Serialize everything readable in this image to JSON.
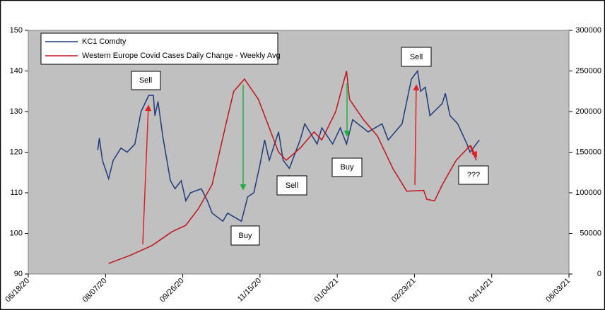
{
  "chart_data": {
    "type": "line",
    "xlim": [
      "2020-06-18",
      "2021-06-03"
    ],
    "xticks": [
      {
        "value": "2020-06-18",
        "label": "06/18/20"
      },
      {
        "value": "2020-08-07",
        "label": "08/07/20"
      },
      {
        "value": "2020-09-26",
        "label": "09/26/20"
      },
      {
        "value": "2020-11-15",
        "label": "11/15/20"
      },
      {
        "value": "2021-01-04",
        "label": "01/04/21"
      },
      {
        "value": "2021-02-23",
        "label": "02/23/21"
      },
      {
        "value": "2021-04-14",
        "label": "04/14/21"
      },
      {
        "value": "2021-06-03",
        "label": "06/03/21"
      }
    ],
    "ylim": [
      90,
      150
    ],
    "yticks": [
      90,
      100,
      110,
      120,
      130,
      140,
      150
    ],
    "y2lim": [
      0,
      300000
    ],
    "y2ticks": [
      0,
      50000,
      100000,
      150000,
      200000,
      250000,
      300000
    ],
    "legend": "upper left",
    "series": [
      {
        "name": "KC1 Comdty",
        "color": "#1f3a7a",
        "x": [
          "2020-08-02",
          "2020-08-03",
          "2020-08-05",
          "2020-08-09",
          "2020-08-12",
          "2020-08-17",
          "2020-08-21",
          "2020-08-26",
          "2020-08-30",
          "2020-09-04",
          "2020-09-07",
          "2020-09-08",
          "2020-09-10",
          "2020-09-13",
          "2020-09-18",
          "2020-09-21",
          "2020-09-25",
          "2020-09-28",
          "2020-10-01",
          "2020-10-08",
          "2020-10-12",
          "2020-10-15",
          "2020-10-22",
          "2020-10-25",
          "2020-11-03",
          "2020-11-07",
          "2020-11-11",
          "2020-11-15",
          "2020-11-18",
          "2020-11-21",
          "2020-11-27",
          "2020-11-30",
          "2020-12-04",
          "2020-12-11",
          "2020-12-14",
          "2020-12-22",
          "2020-12-25",
          "2021-01-01",
          "2021-01-06",
          "2021-01-10",
          "2021-01-14",
          "2021-01-24",
          "2021-02-02",
          "2021-02-06",
          "2021-02-15",
          "2021-02-21",
          "2021-02-25",
          "2021-02-27",
          "2021-03-02",
          "2021-03-05",
          "2021-03-13",
          "2021-03-15",
          "2021-03-18",
          "2021-03-23",
          "2021-03-29",
          "2021-03-31",
          "2021-04-06"
        ],
        "values": [
          120.5,
          123.5,
          118,
          113.5,
          118,
          121,
          120,
          122,
          130,
          134,
          134,
          129,
          132.5,
          124,
          113,
          111,
          113,
          108,
          110,
          111,
          108,
          105,
          103,
          105,
          103,
          109,
          110,
          117,
          123,
          118,
          125,
          118,
          116,
          123,
          127,
          122,
          126,
          122,
          126,
          122,
          128,
          125,
          127,
          123,
          127,
          138,
          140,
          135,
          136,
          129,
          132,
          134.5,
          129,
          127,
          122,
          120,
          123
        ]
      },
      {
        "name": "Western Europe Covid Cases Daily Change - Weekly Avg",
        "color": "#c0141c",
        "axis": "y2",
        "x": [
          "2020-08-09",
          "2020-08-23",
          "2020-09-06",
          "2020-09-19",
          "2020-09-28",
          "2020-10-06",
          "2020-10-15",
          "2020-10-24",
          "2020-10-29",
          "2020-11-05",
          "2020-11-14",
          "2020-11-19",
          "2020-11-27",
          "2020-12-02",
          "2020-12-11",
          "2020-12-20",
          "2020-12-25",
          "2021-01-03",
          "2021-01-10",
          "2021-01-12",
          "2021-01-21",
          "2021-01-30",
          "2021-02-09",
          "2021-02-18",
          "2021-03-01",
          "2021-03-03",
          "2021-03-08",
          "2021-03-13",
          "2021-03-22",
          "2021-03-31",
          "2021-04-04"
        ],
        "values": [
          13000,
          23000,
          35000,
          52000,
          60000,
          80000,
          110000,
          185000,
          225000,
          240000,
          215000,
          190000,
          150000,
          140000,
          155000,
          175000,
          165000,
          200000,
          250000,
          215000,
          190000,
          170000,
          130000,
          102000,
          103000,
          92000,
          90000,
          110000,
          140000,
          158000,
          140000
        ]
      }
    ],
    "annotations": [
      "Sell",
      "Buy",
      "Sell",
      "Buy",
      "Sell",
      "???"
    ]
  }
}
